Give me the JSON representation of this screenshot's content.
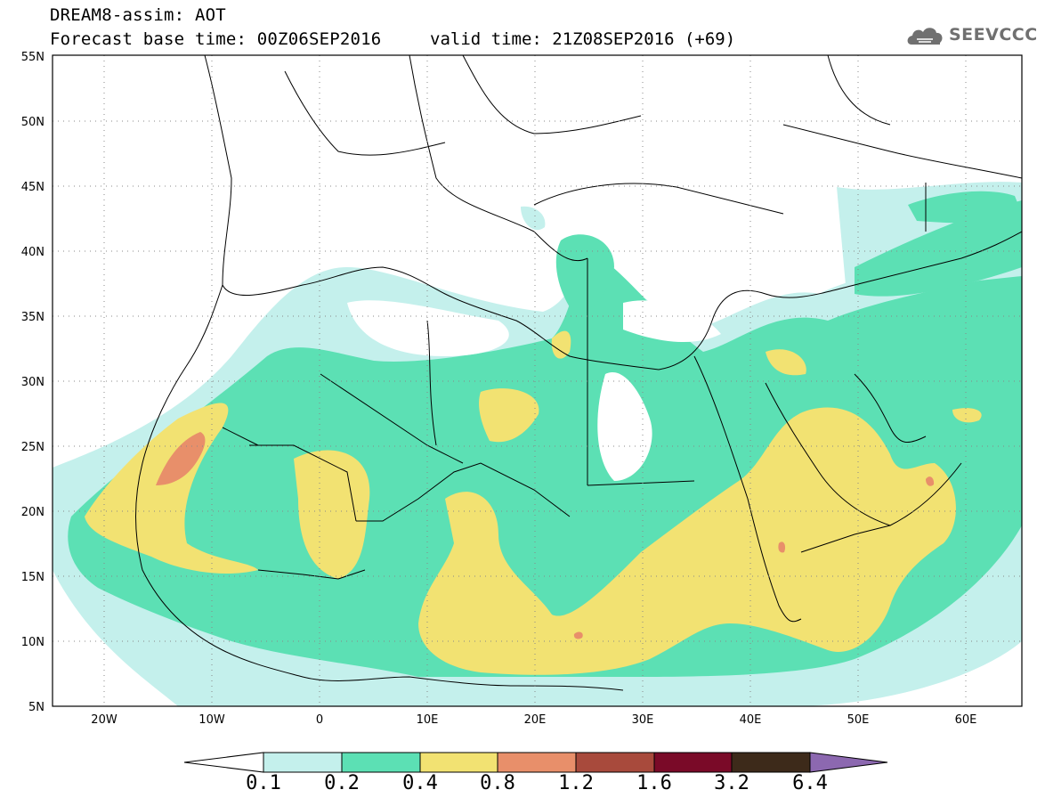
{
  "header": {
    "title": "DREAM8-assim: AOT",
    "base_time": "Forecast base time: 00Z06SEP2016",
    "valid_time": "valid time: 21Z08SEP2016 (+69)",
    "logo_text": "SEEVCCC",
    "logo_icon": "cloud-icon"
  },
  "map": {
    "projection": "lat-lon",
    "lon_range": [
      -25,
      65
    ],
    "lat_range": [
      5,
      55
    ],
    "lat_ticks": [
      "5N",
      "10N",
      "15N",
      "20N",
      "25N",
      "30N",
      "35N",
      "40N",
      "45N",
      "50N",
      "55N"
    ],
    "lon_ticks": [
      "20W",
      "10W",
      "0",
      "10E",
      "20E",
      "30E",
      "40E",
      "50E",
      "60E"
    ],
    "grid": "dotted"
  },
  "colorbar": {
    "levels": [
      "0.1",
      "0.2",
      "0.4",
      "0.8",
      "1.2",
      "1.6",
      "3.2",
      "6.4"
    ],
    "colors": [
      "#c4f0ec",
      "#5ce0b4",
      "#f2e272",
      "#e88f6a",
      "#a84a3c",
      "#7a0a28",
      "#3d2a1a",
      "#8c68b0"
    ],
    "under_color": "#ffffff"
  }
}
